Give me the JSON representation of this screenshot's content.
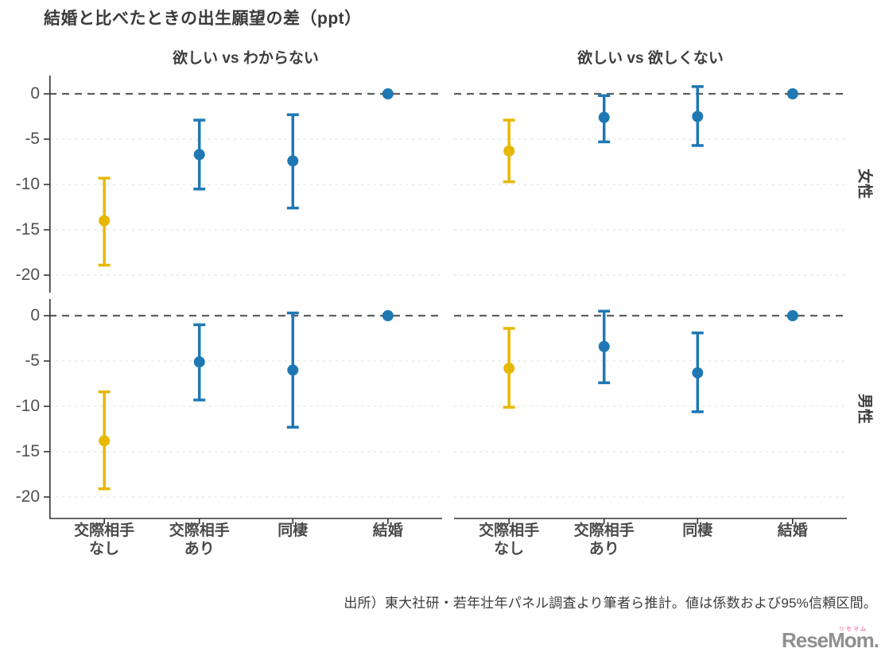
{
  "chart_data": {
    "type": "pointrange",
    "title": "結婚と比べたときの出生願望の差（ppt）",
    "col_facets": [
      "欲しい vs わからない",
      "欲しい vs 欲しくない"
    ],
    "row_facets": [
      "女性",
      "男性"
    ],
    "categories": [
      [
        "交際相手",
        "なし"
      ],
      [
        "交際相手",
        "あり"
      ],
      [
        "同棲"
      ],
      [
        "結婚"
      ]
    ],
    "y_ticks": [
      0,
      -5,
      -10,
      -15,
      -20
    ],
    "ylim": [
      2,
      -22.5
    ],
    "grid": "horizontal dashed gridlines, dashed reference line at 0",
    "legend": "none",
    "colors": {
      "no_partner": "#E7B800",
      "other": "#1F78B4",
      "zero_line": "#5f5f5f",
      "gridline": "#e8e8e8",
      "axis": "#333333"
    },
    "panels": [
      {
        "row_facet": "女性",
        "col_facet": "欲しい vs わからない",
        "points": [
          {
            "category": "交際相手なし",
            "value": -14.0,
            "ci_low": -18.9,
            "ci_high": -9.3,
            "series": "no_partner"
          },
          {
            "category": "交際相手あり",
            "value": -6.7,
            "ci_low": -10.5,
            "ci_high": -2.9,
            "series": "other"
          },
          {
            "category": "同棲",
            "value": -7.4,
            "ci_low": -12.6,
            "ci_high": -2.3,
            "series": "other"
          },
          {
            "category": "結婚",
            "value": 0,
            "reference": true,
            "series": "other"
          }
        ]
      },
      {
        "row_facet": "女性",
        "col_facet": "欲しい vs 欲しくない",
        "points": [
          {
            "category": "交際相手なし",
            "value": -6.3,
            "ci_low": -9.7,
            "ci_high": -2.9,
            "series": "no_partner"
          },
          {
            "category": "交際相手あり",
            "value": -2.6,
            "ci_low": -5.3,
            "ci_high": -0.2,
            "series": "other"
          },
          {
            "category": "同棲",
            "value": -2.5,
            "ci_low": -5.7,
            "ci_high": 0.8,
            "series": "other"
          },
          {
            "category": "結婚",
            "value": 0,
            "reference": true,
            "series": "other"
          }
        ]
      },
      {
        "row_facet": "男性",
        "col_facet": "欲しい vs わからない",
        "points": [
          {
            "category": "交際相手なし",
            "value": -13.8,
            "ci_low": -19.1,
            "ci_high": -8.4,
            "series": "no_partner"
          },
          {
            "category": "交際相手あり",
            "value": -5.1,
            "ci_low": -9.3,
            "ci_high": -1.0,
            "series": "other"
          },
          {
            "category": "同棲",
            "value": -6.0,
            "ci_low": -12.3,
            "ci_high": 0.3,
            "series": "other"
          },
          {
            "category": "結婚",
            "value": 0,
            "reference": true,
            "series": "other"
          }
        ]
      },
      {
        "row_facet": "男性",
        "col_facet": "欲しい vs 欲しくない",
        "points": [
          {
            "category": "交際相手なし",
            "value": -5.8,
            "ci_low": -10.1,
            "ci_high": -1.4,
            "series": "no_partner"
          },
          {
            "category": "交際相手あり",
            "value": -3.4,
            "ci_low": -7.4,
            "ci_high": 0.5,
            "series": "other"
          },
          {
            "category": "同棲",
            "value": -6.3,
            "ci_low": -10.6,
            "ci_high": -1.9,
            "series": "other"
          },
          {
            "category": "結婚",
            "value": 0,
            "reference": true,
            "series": "other"
          }
        ]
      }
    ]
  },
  "footer": {
    "source": "出所）東大社研・若年壮年パネル調査より筆者ら推計。値は係数および95%信頼区間。",
    "logo_text": "ReseMom.",
    "logo_ruby": "リセマム",
    "logo_color": "#8f8f8f",
    "logo_ruby_color": "#ef7fae"
  }
}
